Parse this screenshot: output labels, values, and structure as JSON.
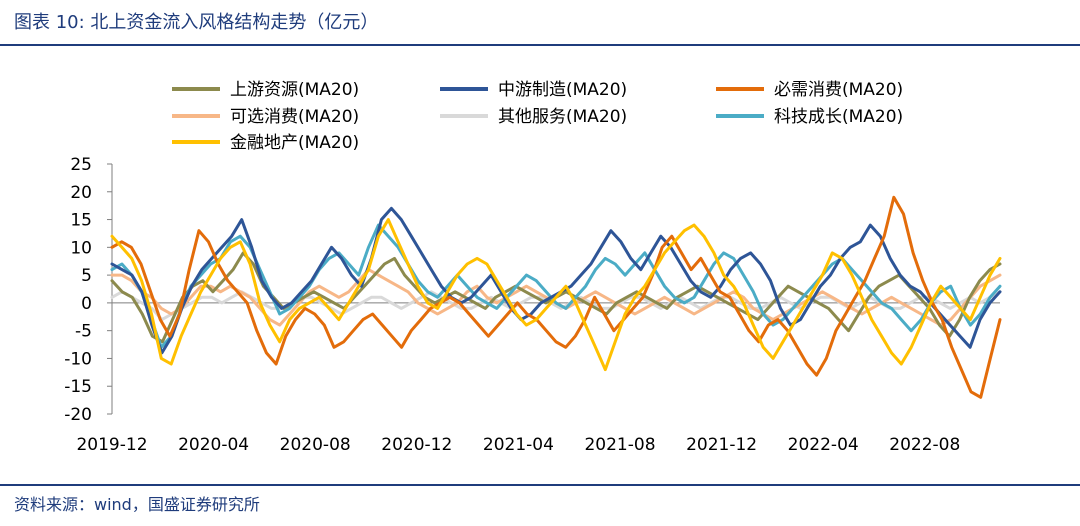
{
  "header": {
    "title": "图表 10:  北上资金流入风格结构走势（亿元）"
  },
  "footer": {
    "source": "资料来源：wind，国盛证券研究所"
  },
  "chart_data": {
    "type": "line",
    "title": "北上资金流入风格结构走势（亿元）",
    "xlabel": "",
    "ylabel": "",
    "ylim": [
      -20,
      25
    ],
    "yticks": [
      25,
      20,
      15,
      10,
      5,
      0,
      -5,
      -10,
      -15,
      -20
    ],
    "xtick_labels": [
      "2019-12",
      "2020-04",
      "2020-08",
      "2020-12",
      "2021-04",
      "2021-08",
      "2021-12",
      "2022-04",
      "2022-08"
    ],
    "legend_position": "top",
    "series": [
      {
        "name": "上游资源(MA20)",
        "color": "#8c8a4d",
        "values": [
          4,
          2,
          1,
          -2,
          -6,
          -7,
          -3,
          1,
          3,
          4,
          2,
          4,
          6,
          9,
          7,
          3,
          1,
          -1,
          0,
          1,
          2,
          1,
          0,
          -1,
          1,
          3,
          5,
          7,
          8,
          5,
          3,
          1,
          0,
          1,
          2,
          1,
          0,
          -1,
          1,
          2,
          3,
          2,
          1,
          0,
          1,
          2,
          1,
          0,
          -1,
          -2,
          0,
          1,
          2,
          1,
          0,
          -1,
          1,
          2,
          3,
          2,
          1,
          0,
          -1,
          -2,
          -3,
          -1,
          1,
          3,
          2,
          1,
          0,
          -1,
          -3,
          -5,
          -2,
          1,
          3,
          4,
          5,
          3,
          1,
          -1,
          -4,
          -6,
          -3,
          1,
          4,
          6,
          7
        ]
      },
      {
        "name": "中游制造(MA20)",
        "color": "#2e5597",
        "values": [
          7,
          6,
          5,
          2,
          -4,
          -9,
          -6,
          -1,
          3,
          6,
          8,
          10,
          12,
          15,
          10,
          4,
          1,
          -1,
          0,
          2,
          4,
          7,
          10,
          8,
          5,
          3,
          8,
          15,
          17,
          15,
          12,
          9,
          6,
          3,
          1,
          0,
          1,
          3,
          5,
          2,
          -1,
          -3,
          -2,
          0,
          1,
          2,
          3,
          5,
          7,
          10,
          13,
          11,
          8,
          6,
          9,
          12,
          10,
          7,
          4,
          2,
          1,
          3,
          6,
          8,
          9,
          7,
          4,
          -1,
          -4,
          -3,
          0,
          3,
          5,
          8,
          10,
          11,
          14,
          12,
          8,
          5,
          3,
          2,
          0,
          -2,
          -4,
          -6,
          -8,
          -3,
          0,
          2
        ]
      },
      {
        "name": "必需消费(MA20)",
        "color": "#e36c0a",
        "values": [
          10,
          11,
          10,
          7,
          2,
          -3,
          -6,
          -2,
          6,
          13,
          11,
          7,
          4,
          2,
          0,
          -5,
          -9,
          -11,
          -6,
          -3,
          -1,
          -2,
          -4,
          -8,
          -7,
          -5,
          -3,
          -2,
          -4,
          -6,
          -8,
          -5,
          -3,
          -1,
          0,
          1,
          0,
          -2,
          -4,
          -6,
          -4,
          -2,
          0,
          -2,
          -3,
          -5,
          -7,
          -8,
          -6,
          -3,
          1,
          -2,
          -5,
          -3,
          -1,
          1,
          5,
          10,
          12,
          9,
          6,
          8,
          5,
          2,
          1,
          -2,
          -5,
          -7,
          -4,
          -3,
          -5,
          -8,
          -11,
          -13,
          -10,
          -5,
          -2,
          1,
          4,
          8,
          12,
          19,
          16,
          9,
          4,
          0,
          -3,
          -8,
          -12,
          -16,
          -17,
          -10,
          -3
        ]
      },
      {
        "name": "可选消费(MA20)",
        "color": "#f7b787",
        "values": [
          5,
          5,
          4,
          2,
          1,
          -1,
          -2,
          -1,
          1,
          3,
          3,
          2,
          3,
          2,
          1,
          -1,
          -3,
          -4,
          -2,
          0,
          2,
          3,
          2,
          1,
          2,
          4,
          6,
          5,
          4,
          3,
          2,
          0,
          -1,
          -2,
          -1,
          0,
          2,
          3,
          1,
          0,
          1,
          2,
          3,
          2,
          1,
          0,
          -1,
          0,
          1,
          2,
          1,
          0,
          -1,
          -2,
          -1,
          0,
          1,
          0,
          -1,
          -2,
          -1,
          0,
          1,
          2,
          1,
          -1,
          -2,
          -3,
          -2,
          -1,
          0,
          1,
          2,
          1,
          0,
          -1,
          -2,
          -1,
          0,
          1,
          0,
          -1,
          -2,
          -3,
          -4,
          -3,
          -1,
          1,
          3,
          4,
          5
        ]
      },
      {
        "name": "其他服务(MA20)",
        "color": "#d9d9d9",
        "values": [
          1,
          2,
          1,
          0,
          -1,
          -3,
          -2,
          -1,
          0,
          1,
          1,
          0,
          1,
          2,
          1,
          0,
          -1,
          -1,
          0,
          1,
          1,
          0,
          -1,
          -2,
          -1,
          0,
          1,
          1,
          0,
          -1,
          0,
          1,
          2,
          1,
          0,
          -1,
          -1,
          0,
          1,
          0,
          -1,
          0,
          1,
          1,
          0,
          -1,
          0,
          1,
          0,
          -1,
          -1,
          0,
          1,
          1,
          0,
          -1,
          0,
          1,
          0,
          -1,
          0,
          1,
          1,
          0,
          -1,
          -1,
          0,
          1,
          0,
          -1,
          0,
          1,
          1,
          0,
          -1,
          0,
          1,
          0,
          -1,
          -1,
          0,
          1,
          1,
          0,
          -1,
          0,
          1,
          0,
          1,
          2
        ]
      },
      {
        "name": "科技成长(MA20)",
        "color": "#4bacc6",
        "values": [
          6,
          7,
          5,
          2,
          -3,
          -8,
          -6,
          -1,
          3,
          5,
          7,
          8,
          11,
          12,
          10,
          6,
          2,
          -2,
          -1,
          1,
          3,
          6,
          8,
          9,
          7,
          5,
          10,
          14,
          12,
          10,
          7,
          4,
          2,
          1,
          3,
          5,
          3,
          1,
          0,
          -1,
          1,
          3,
          5,
          4,
          2,
          0,
          -1,
          1,
          3,
          6,
          8,
          7,
          5,
          7,
          9,
          6,
          3,
          1,
          0,
          1,
          4,
          7,
          9,
          8,
          5,
          2,
          -2,
          -4,
          -3,
          -1,
          1,
          3,
          5,
          7,
          8,
          6,
          4,
          2,
          0,
          -1,
          -3,
          -5,
          -3,
          0,
          2,
          3,
          -1,
          -4,
          -2,
          1,
          3
        ]
      },
      {
        "name": "金融地产(MA20)",
        "color": "#ffc000",
        "values": [
          12,
          10,
          8,
          4,
          -2,
          -10,
          -11,
          -6,
          -2,
          2,
          5,
          8,
          10,
          11,
          7,
          0,
          -4,
          -7,
          -3,
          -1,
          0,
          1,
          -1,
          -3,
          0,
          3,
          6,
          12,
          15,
          11,
          7,
          3,
          0,
          -1,
          2,
          5,
          7,
          8,
          7,
          4,
          1,
          -2,
          -4,
          -3,
          -1,
          1,
          3,
          0,
          -4,
          -8,
          -12,
          -7,
          -2,
          1,
          3,
          6,
          9,
          11,
          13,
          14,
          12,
          9,
          5,
          3,
          0,
          -4,
          -8,
          -10,
          -7,
          -4,
          -1,
          2,
          5,
          9,
          8,
          5,
          1,
          -3,
          -6,
          -9,
          -11,
          -8,
          -4,
          0,
          3,
          1,
          -1,
          -3,
          1,
          5,
          8
        ]
      }
    ]
  }
}
